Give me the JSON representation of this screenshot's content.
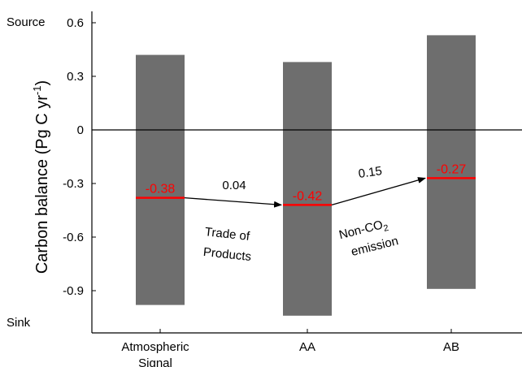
{
  "chart_data": {
    "type": "bar",
    "categories": [
      [
        "Atmospheric",
        "Signal"
      ],
      [
        "AA"
      ],
      [
        "AB"
      ]
    ],
    "ranges": [
      {
        "low": -0.98,
        "high": 0.42
      },
      {
        "low": -1.04,
        "high": 0.38
      },
      {
        "low": -0.89,
        "high": 0.53
      }
    ],
    "values": [
      -0.38,
      -0.42,
      -0.27
    ],
    "value_labels": [
      "-0.38",
      "-0.42",
      "-0.27"
    ],
    "ylabel": {
      "main": "Carbon balance (Pg C yr",
      "sup": "-1",
      "end": ")"
    },
    "yticks": [
      0.6,
      0.3,
      0,
      -0.3,
      -0.6,
      -0.9
    ],
    "ytick_labels": [
      "0.6",
      "0.3",
      "0",
      "-0.3",
      "-0.6",
      "-0.9"
    ],
    "ylim": [
      -1.1,
      0.65
    ],
    "source_label": "Source",
    "sink_label": "Sink",
    "annotations": [
      {
        "change": "0.04",
        "lines": [
          "Trade of",
          "Products"
        ]
      },
      {
        "change": "0.15",
        "line1": "Non-CO",
        "sub": "2",
        "line2": "emission"
      }
    ],
    "colors": {
      "bar": "#6e6e6e",
      "mean_line": "#ff0000",
      "axis": "#000000",
      "value_text": "#ff0000"
    }
  }
}
